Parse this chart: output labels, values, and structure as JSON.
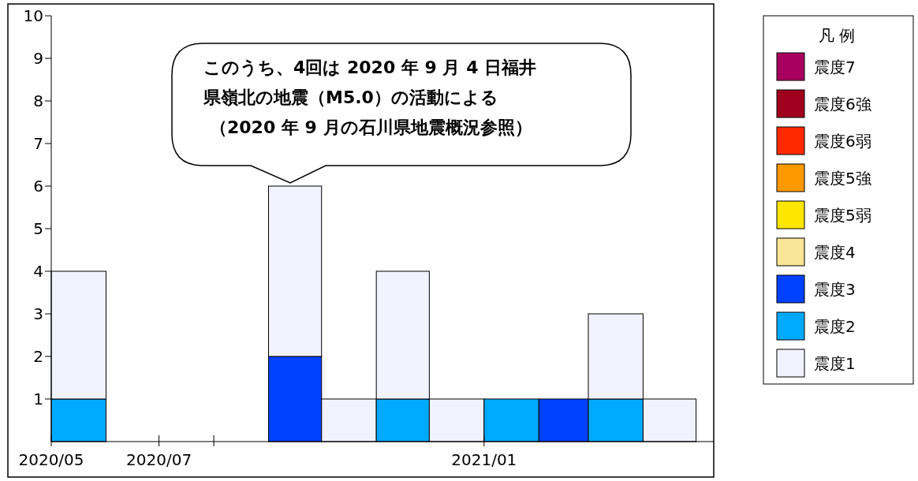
{
  "chart_data": {
    "type": "bar",
    "stacked": true,
    "x": [
      "2020-05-16",
      "2020-06-16",
      "2020-07-16",
      "2020-08-16",
      "2020-09-16",
      "2020-10-16",
      "2020-11-16",
      "2020-12-16",
      "2021-01-16",
      "2021-02-15",
      "2021-03-16",
      "2021-04-16"
    ],
    "xlim": [
      "2020-05-01",
      "2021-05-11"
    ],
    "xticks": [
      {
        "value": "2020-05",
        "label": "2020/05"
      },
      {
        "value": "2020-07",
        "label": "2020/07"
      },
      {
        "value": "2020-08",
        "label": null
      },
      {
        "value": "2021-01",
        "label": "2021/01"
      }
    ],
    "ylim": [
      0,
      10
    ],
    "yticks": [
      1,
      2,
      3,
      4,
      5,
      6,
      7,
      8,
      9,
      10
    ],
    "grid": false,
    "legend": "right",
    "legend_title": "凡 例",
    "series": [
      {
        "name": "震度7",
        "color": "#a8005f",
        "values": [
          0,
          0,
          0,
          0,
          0,
          0,
          0,
          0,
          0,
          0,
          0,
          0
        ]
      },
      {
        "name": "震度6強",
        "color": "#a0001e",
        "values": [
          0,
          0,
          0,
          0,
          0,
          0,
          0,
          0,
          0,
          0,
          0,
          0
        ]
      },
      {
        "name": "震度6弱",
        "color": "#ff2a00",
        "values": [
          0,
          0,
          0,
          0,
          0,
          0,
          0,
          0,
          0,
          0,
          0,
          0
        ]
      },
      {
        "name": "震度5強",
        "color": "#ff9900",
        "values": [
          0,
          0,
          0,
          0,
          0,
          0,
          0,
          0,
          0,
          0,
          0,
          0
        ]
      },
      {
        "name": "震度5弱",
        "color": "#ffe600",
        "values": [
          0,
          0,
          0,
          0,
          0,
          0,
          0,
          0,
          0,
          0,
          0,
          0
        ]
      },
      {
        "name": "震度4",
        "color": "#fae696",
        "values": [
          0,
          0,
          0,
          0,
          0,
          0,
          0,
          0,
          0,
          0,
          0,
          0
        ]
      },
      {
        "name": "震度3",
        "color": "#0041ff",
        "values": [
          0,
          0,
          0,
          0,
          2,
          0,
          0,
          0,
          0,
          1,
          0,
          0
        ]
      },
      {
        "name": "震度2",
        "color": "#00aaff",
        "values": [
          1,
          0,
          0,
          0,
          0,
          0,
          1,
          0,
          1,
          0,
          1,
          0
        ]
      },
      {
        "name": "震度1",
        "color": "#f2f2ff",
        "values": [
          3,
          0,
          0,
          0,
          4,
          1,
          3,
          1,
          0,
          0,
          2,
          1
        ]
      }
    ],
    "annotations": [
      "このうち、4回は 2020 年 9 月 4 日福井",
      "県嶺北の地震（M5.0）の活動による",
      "（2020 年 9 月の石川県地震概況参照）"
    ]
  }
}
